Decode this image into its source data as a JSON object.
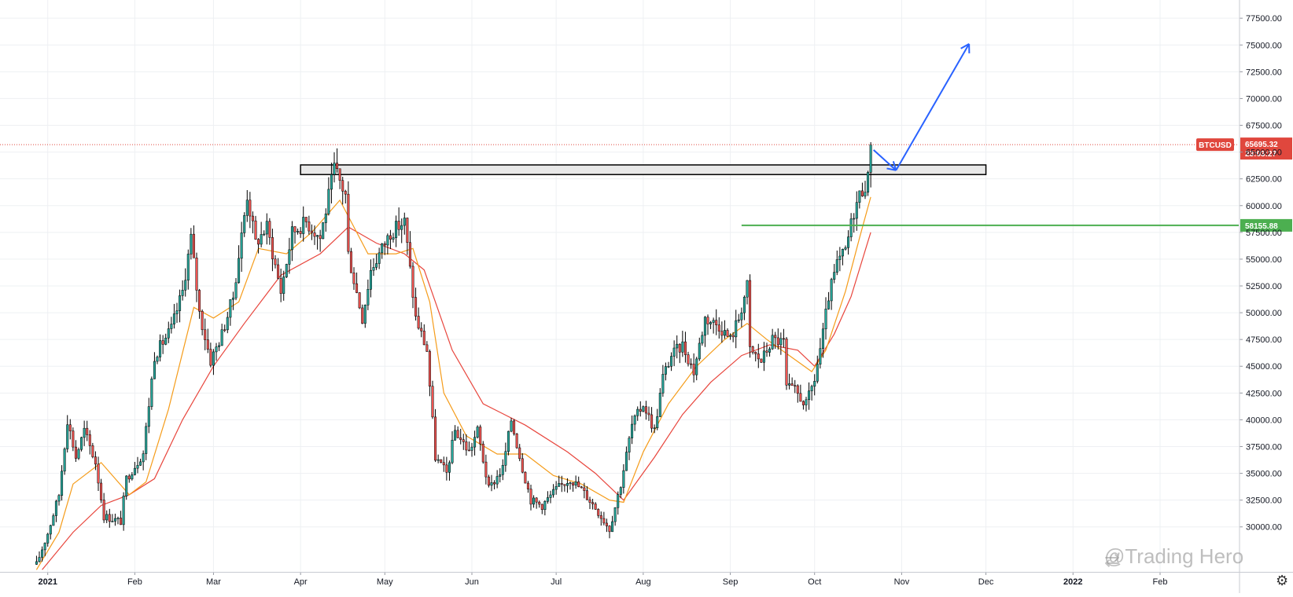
{
  "symbol_label": "BTCUSD",
  "watermark": "@Trading Hero",
  "settings_icon": "gear-icon",
  "price_tag": {
    "price": "65695.32",
    "countdown": "23:03:27",
    "color": "#e0473d"
  },
  "level_tag": {
    "price": "58155.88",
    "color": "#4caf50"
  },
  "colors": {
    "up": "#26a69a",
    "down": "#ef5350",
    "candle_border": "#000000",
    "ema_fast": "#f59c1a",
    "ema_slow": "#e8453c",
    "support_line": "#4caf50",
    "arrows": "#2962ff",
    "grid": "#eef0f3"
  },
  "chart_data": {
    "type": "candlestick",
    "title": "",
    "xlabel": "",
    "ylabel": "",
    "ylim": [
      25800,
      79200
    ],
    "x_range": [
      "2020-12-15",
      "2022-03-01"
    ],
    "y_ticks": [
      "30000.00",
      "32500.00",
      "35000.00",
      "37500.00",
      "40000.00",
      "42500.00",
      "45000.00",
      "47500.00",
      "50000.00",
      "52500.00",
      "55000.00",
      "57500.00",
      "60000.00",
      "62500.00",
      "65000.00",
      "67500.00",
      "70000.00",
      "72500.00",
      "75000.00",
      "77500.00"
    ],
    "x_ticks": [
      {
        "date": "2021-01-01",
        "label": "2021",
        "bold": true
      },
      {
        "date": "2021-02-01",
        "label": "Feb"
      },
      {
        "date": "2021-03-01",
        "label": "Mar"
      },
      {
        "date": "2021-04-01",
        "label": "Apr"
      },
      {
        "date": "2021-05-01",
        "label": "May"
      },
      {
        "date": "2021-06-01",
        "label": "Jun"
      },
      {
        "date": "2021-07-01",
        "label": "Jul"
      },
      {
        "date": "2021-08-01",
        "label": "Aug"
      },
      {
        "date": "2021-09-01",
        "label": "Sep"
      },
      {
        "date": "2021-10-01",
        "label": "Oct"
      },
      {
        "date": "2021-11-01",
        "label": "Nov"
      },
      {
        "date": "2021-12-01",
        "label": "Dec"
      },
      {
        "date": "2022-01-01",
        "label": "2022",
        "bold": true
      },
      {
        "date": "2022-02-01",
        "label": "Feb"
      }
    ],
    "close_path": [
      [
        "2020-12-28",
        26500
      ],
      [
        "2021-01-01",
        29400
      ],
      [
        "2021-01-05",
        33000
      ],
      [
        "2021-01-08",
        40000
      ],
      [
        "2021-01-11",
        36500
      ],
      [
        "2021-01-14",
        39000
      ],
      [
        "2021-01-18",
        36000
      ],
      [
        "2021-01-21",
        31000
      ],
      [
        "2021-01-27",
        30500
      ],
      [
        "2021-01-29",
        34500
      ],
      [
        "2021-02-04",
        36900
      ],
      [
        "2021-02-08",
        46000
      ],
      [
        "2021-02-14",
        48500
      ],
      [
        "2021-02-18",
        52000
      ],
      [
        "2021-02-21",
        57000
      ],
      [
        "2021-02-24",
        50000
      ],
      [
        "2021-02-28",
        45500
      ],
      [
        "2021-03-04",
        48000
      ],
      [
        "2021-03-08",
        51500
      ],
      [
        "2021-03-13",
        61000
      ],
      [
        "2021-03-16",
        56500
      ],
      [
        "2021-03-20",
        58000
      ],
      [
        "2021-03-25",
        52000
      ],
      [
        "2021-03-29",
        57500
      ],
      [
        "2021-04-03",
        58500
      ],
      [
        "2021-04-08",
        57000
      ],
      [
        "2021-04-13",
        63500
      ],
      [
        "2021-04-17",
        61000
      ],
      [
        "2021-04-18",
        55500
      ],
      [
        "2021-04-23",
        49500
      ],
      [
        "2021-04-26",
        54000
      ],
      [
        "2021-05-03",
        57500
      ],
      [
        "2021-05-08",
        58500
      ],
      [
        "2021-05-12",
        49500
      ],
      [
        "2021-05-16",
        46500
      ],
      [
        "2021-05-19",
        36500
      ],
      [
        "2021-05-23",
        35000
      ],
      [
        "2021-05-26",
        39000
      ],
      [
        "2021-05-31",
        37000
      ],
      [
        "2021-06-03",
        39000
      ],
      [
        "2021-06-07",
        33500
      ],
      [
        "2021-06-12",
        35500
      ],
      [
        "2021-06-15",
        40000
      ],
      [
        "2021-06-19",
        35500
      ],
      [
        "2021-06-22",
        32500
      ],
      [
        "2021-06-26",
        32000
      ],
      [
        "2021-07-01",
        33500
      ],
      [
        "2021-07-06",
        34500
      ],
      [
        "2021-07-10",
        33500
      ],
      [
        "2021-07-15",
        31800
      ],
      [
        "2021-07-20",
        29800
      ],
      [
        "2021-07-24",
        34000
      ],
      [
        "2021-07-28",
        39500
      ],
      [
        "2021-08-01",
        41500
      ],
      [
        "2021-08-05",
        39000
      ],
      [
        "2021-08-08",
        44000
      ],
      [
        "2021-08-11",
        46000
      ],
      [
        "2021-08-15",
        47000
      ],
      [
        "2021-08-19",
        44500
      ],
      [
        "2021-08-23",
        49500
      ],
      [
        "2021-08-28",
        48800
      ],
      [
        "2021-09-01",
        47500
      ],
      [
        "2021-09-04",
        49500
      ],
      [
        "2021-09-07",
        52500
      ],
      [
        "2021-09-08",
        46500
      ],
      [
        "2021-09-12",
        45500
      ],
      [
        "2021-09-16",
        47500
      ],
      [
        "2021-09-20",
        47200
      ],
      [
        "2021-09-21",
        43000
      ],
      [
        "2021-09-24",
        42700
      ],
      [
        "2021-09-28",
        41400
      ],
      [
        "2021-10-01",
        43800
      ],
      [
        "2021-10-04",
        48000
      ],
      [
        "2021-10-06",
        51500
      ],
      [
        "2021-10-09",
        54500
      ],
      [
        "2021-10-12",
        55800
      ],
      [
        "2021-10-15",
        59500
      ],
      [
        "2021-10-17",
        61000
      ],
      [
        "2021-10-20",
        62500
      ],
      [
        "2021-10-21",
        65695.32
      ]
    ],
    "ema_fast_path": [
      [
        "2020-12-28",
        26000
      ],
      [
        "2021-01-05",
        29500
      ],
      [
        "2021-01-10",
        34000
      ],
      [
        "2021-01-20",
        36000
      ],
      [
        "2021-01-30",
        33000
      ],
      [
        "2021-02-05",
        34200
      ],
      [
        "2021-02-13",
        41000
      ],
      [
        "2021-02-22",
        50500
      ],
      [
        "2021-03-01",
        49500
      ],
      [
        "2021-03-10",
        51000
      ],
      [
        "2021-03-17",
        56000
      ],
      [
        "2021-03-27",
        55500
      ],
      [
        "2021-04-05",
        57500
      ],
      [
        "2021-04-15",
        60500
      ],
      [
        "2021-04-25",
        55500
      ],
      [
        "2021-05-05",
        55500
      ],
      [
        "2021-05-11",
        56000
      ],
      [
        "2021-05-17",
        51000
      ],
      [
        "2021-05-22",
        42500
      ],
      [
        "2021-05-30",
        38500
      ],
      [
        "2021-06-10",
        36800
      ],
      [
        "2021-06-20",
        36800
      ],
      [
        "2021-06-30",
        34800
      ],
      [
        "2021-07-10",
        34000
      ],
      [
        "2021-07-20",
        32500
      ],
      [
        "2021-07-25",
        32300
      ],
      [
        "2021-08-01",
        37000
      ],
      [
        "2021-08-10",
        41500
      ],
      [
        "2021-08-20",
        45000
      ],
      [
        "2021-08-30",
        47500
      ],
      [
        "2021-09-07",
        49000
      ],
      [
        "2021-09-14",
        47500
      ],
      [
        "2021-09-22",
        46000
      ],
      [
        "2021-09-30",
        44500
      ],
      [
        "2021-10-05",
        46500
      ],
      [
        "2021-10-12",
        52000
      ],
      [
        "2021-10-17",
        57000
      ],
      [
        "2021-10-21",
        60800
      ]
    ],
    "ema_slow_path": [
      [
        "2020-12-30",
        26000
      ],
      [
        "2021-01-10",
        29500
      ],
      [
        "2021-01-20",
        32000
      ],
      [
        "2021-01-30",
        33000
      ],
      [
        "2021-02-08",
        34500
      ],
      [
        "2021-02-18",
        40000
      ],
      [
        "2021-03-01",
        45000
      ],
      [
        "2021-03-12",
        49000
      ],
      [
        "2021-03-25",
        53500
      ],
      [
        "2021-04-08",
        55500
      ],
      [
        "2021-04-18",
        58000
      ],
      [
        "2021-04-28",
        56500
      ],
      [
        "2021-05-08",
        55500
      ],
      [
        "2021-05-15",
        54000
      ],
      [
        "2021-05-25",
        46500
      ],
      [
        "2021-06-05",
        41500
      ],
      [
        "2021-06-20",
        39500
      ],
      [
        "2021-07-05",
        37000
      ],
      [
        "2021-07-15",
        35000
      ],
      [
        "2021-07-25",
        32500
      ],
      [
        "2021-08-05",
        36500
      ],
      [
        "2021-08-15",
        40500
      ],
      [
        "2021-08-25",
        43500
      ],
      [
        "2021-09-05",
        46000
      ],
      [
        "2021-09-15",
        47000
      ],
      [
        "2021-09-25",
        46500
      ],
      [
        "2021-10-01",
        45000
      ],
      [
        "2021-10-08",
        48000
      ],
      [
        "2021-10-14",
        51500
      ],
      [
        "2021-10-21",
        57500
      ]
    ],
    "resistance_zone": {
      "from": "2021-04-01",
      "to": "2021-12-01",
      "low": 62900,
      "high": 63800
    },
    "support_line": {
      "from": "2021-09-05",
      "to": "2022-03-01",
      "value": 58155.88
    },
    "current_price": 65695.32,
    "projection_arrows": [
      [
        "2021-10-22",
        65200,
        "2021-10-30",
        63300
      ],
      [
        "2021-10-30",
        63300,
        "2021-11-25",
        75100
      ]
    ]
  }
}
